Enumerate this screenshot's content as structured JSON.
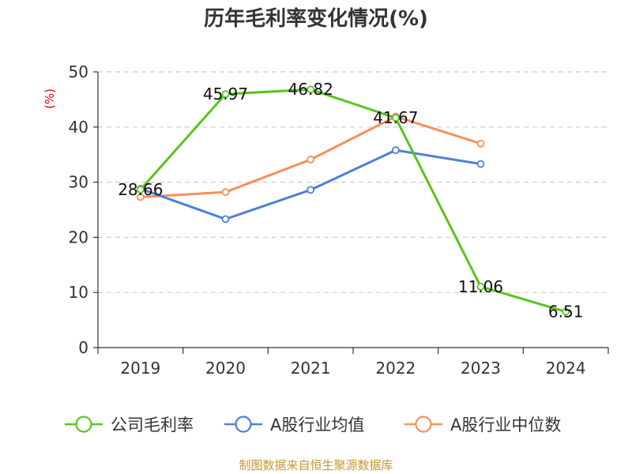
{
  "chart_data": {
    "type": "line",
    "title": "历年毛利率变化情况(%)",
    "ylabel": "(%)",
    "xlabel": "",
    "categories": [
      "2019",
      "2020",
      "2021",
      "2022",
      "2023",
      "2024"
    ],
    "ylim": [
      0,
      50
    ],
    "yticks": [
      0,
      10,
      20,
      30,
      40,
      50
    ],
    "grid": true,
    "legend_position": "bottom",
    "series": [
      {
        "name": "公司毛利率",
        "color": "#5ac41d",
        "values": [
          28.66,
          45.97,
          46.82,
          41.67,
          11.06,
          6.51
        ],
        "labels": [
          "28.66",
          "45.97",
          "46.82",
          "41.67",
          "11.06",
          "6.51"
        ]
      },
      {
        "name": "A股行业均值",
        "color": "#4d7fd9",
        "values": [
          28.8,
          23.3,
          28.6,
          35.8,
          33.3,
          null
        ]
      },
      {
        "name": "A股行业中位数",
        "color": "#f5905a",
        "values": [
          27.3,
          28.2,
          34.1,
          41.9,
          37.0,
          null
        ]
      }
    ],
    "source": "制图数据来自恒生聚源数据库"
  }
}
